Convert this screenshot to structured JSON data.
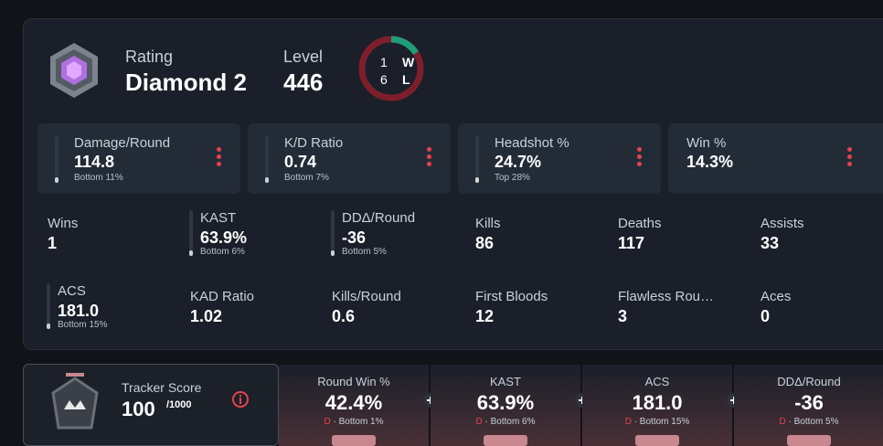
{
  "header": {
    "rating_label": "Rating",
    "rating": "Diamond 2",
    "level_label": "Level",
    "level": "446",
    "wins": "1",
    "wins_label": "W",
    "losses": "6",
    "losses_label": "L"
  },
  "highlights": [
    {
      "label": "Damage/Round",
      "value": "114.8",
      "rank": "Bottom 11%"
    },
    {
      "label": "K/D Ratio",
      "value": "0.74",
      "rank": "Bottom 7%"
    },
    {
      "label": "Headshot %",
      "value": "24.7%",
      "rank": "Top 28%"
    },
    {
      "label": "Win %",
      "value": "14.3%"
    }
  ],
  "stats": [
    {
      "label": "Wins",
      "value": "1"
    },
    {
      "label": "KAST",
      "value": "63.9%",
      "rank": "Bottom 6%"
    },
    {
      "label": "DDΔ/Round",
      "value": "-36",
      "rank": "Bottom 5%"
    },
    {
      "label": "Kills",
      "value": "86"
    },
    {
      "label": "Deaths",
      "value": "117"
    },
    {
      "label": "Assists",
      "value": "33"
    },
    {
      "label": "ACS",
      "value": "181.0",
      "rank": "Bottom 15%"
    },
    {
      "label": "KAD Ratio",
      "value": "1.02"
    },
    {
      "label": "Kills/Round",
      "value": "0.6"
    },
    {
      "label": "First Bloods",
      "value": "12"
    },
    {
      "label": "Flawless Rou…",
      "value": "3"
    },
    {
      "label": "Aces",
      "value": "0"
    }
  ],
  "tracker": {
    "label": "Tracker Score",
    "value": "100",
    "max": "/1000"
  },
  "summary": [
    {
      "label": "Round Win %",
      "value": "42.4%",
      "grade": "D",
      "detail": "· Bottom 1%"
    },
    {
      "label": "KAST",
      "value": "63.9%",
      "grade": "D",
      "detail": "· Bottom 6%"
    },
    {
      "label": "ACS",
      "value": "181.0",
      "grade": "D",
      "detail": "· Bottom 15%"
    },
    {
      "label": "DDΔ/Round",
      "value": "-36",
      "grade": "D",
      "detail": "· Bottom 5%"
    }
  ]
}
